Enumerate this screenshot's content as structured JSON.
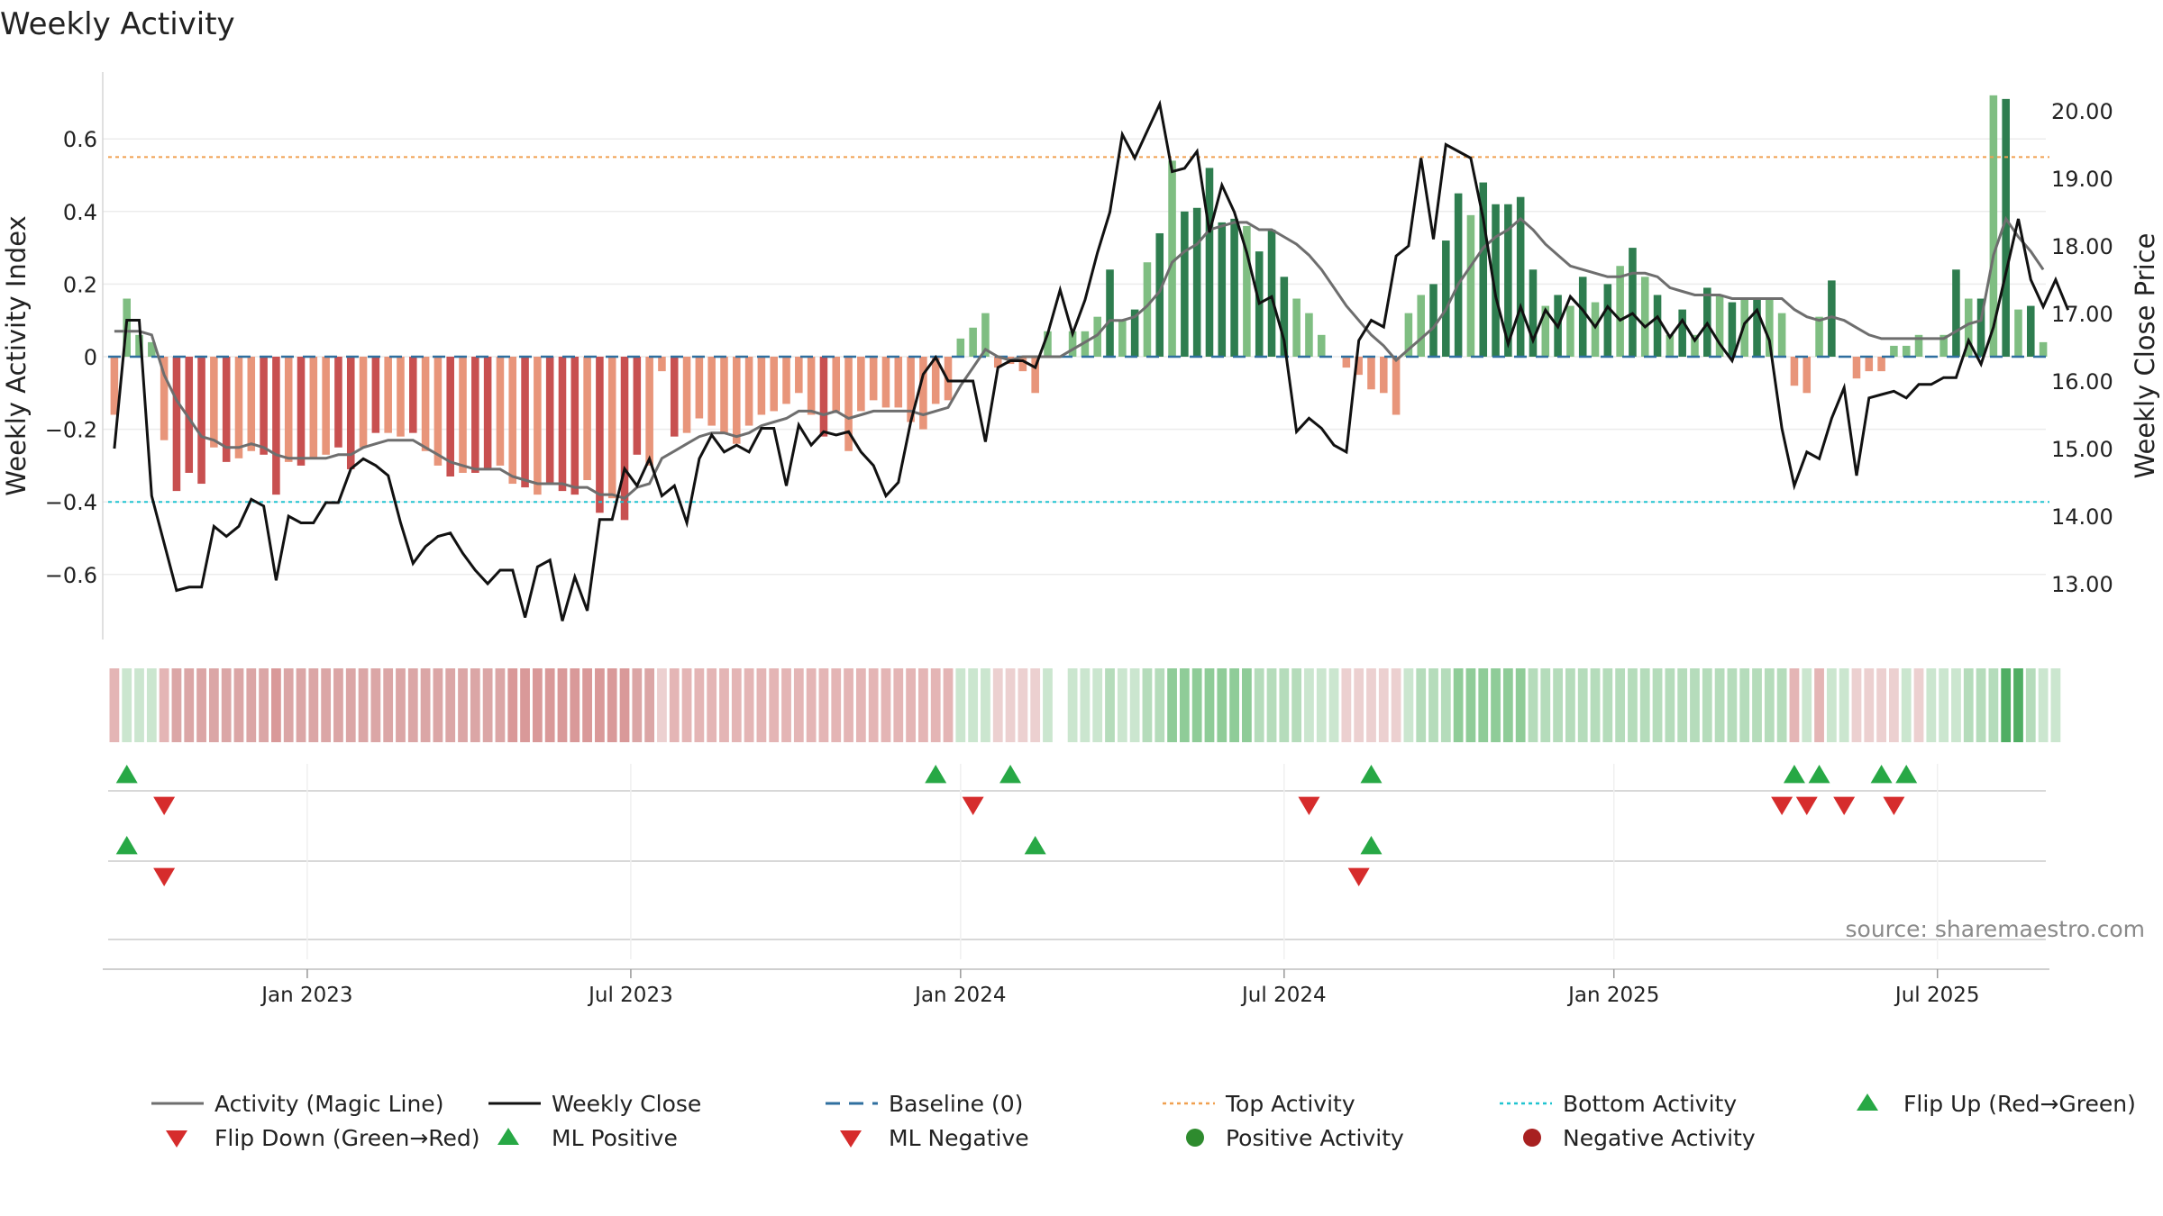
{
  "chart_data": {
    "type": "bar",
    "title": "Weekly Activity",
    "ylabel": "Weekly Activity Index",
    "y2label": "Weekly Close Price",
    "ylim": [
      -0.78,
      0.78
    ],
    "y2lim": [
      12.2,
      20.6
    ],
    "y_ticks": [
      0.6,
      0.4,
      0.2,
      0,
      -0.2,
      -0.4,
      -0.6
    ],
    "y_tick_labels": [
      "0.6",
      "0.4",
      "0.2",
      "0",
      "−0.2",
      "−0.4",
      "−0.6"
    ],
    "y2_ticks": [
      20,
      19,
      18,
      17,
      16,
      15,
      14,
      13
    ],
    "y2_tick_labels": [
      "20.00",
      "19.00",
      "18.00",
      "17.00",
      "16.00",
      "15.00",
      "14.00",
      "13.00"
    ],
    "x_ticks": [
      {
        "label": "Jan 2023",
        "week": 15.5
      },
      {
        "label": "Jul 2023",
        "week": 41.5
      },
      {
        "label": "Jan 2024",
        "week": 68
      },
      {
        "label": "Jul 2024",
        "week": 94
      },
      {
        "label": "Jan 2025",
        "week": 120.5
      },
      {
        "label": "Jul 2025",
        "week": 146.5
      }
    ],
    "top_activity": 0.55,
    "bottom_activity": -0.4,
    "activity": [
      -0.16,
      0.16,
      0.06,
      0.04,
      -0.23,
      -0.37,
      -0.32,
      -0.35,
      -0.25,
      -0.29,
      -0.28,
      -0.26,
      -0.27,
      -0.38,
      -0.29,
      -0.3,
      -0.28,
      -0.27,
      -0.25,
      -0.31,
      -0.25,
      -0.21,
      -0.21,
      -0.22,
      -0.21,
      -0.26,
      -0.3,
      -0.33,
      -0.32,
      -0.32,
      -0.31,
      -0.3,
      -0.35,
      -0.36,
      -0.38,
      -0.35,
      -0.37,
      -0.38,
      -0.34,
      -0.43,
      -0.39,
      -0.45,
      -0.27,
      -0.3,
      -0.04,
      -0.22,
      -0.21,
      -0.17,
      -0.19,
      -0.21,
      -0.24,
      -0.19,
      -0.16,
      -0.15,
      -0.13,
      -0.1,
      -0.16,
      -0.22,
      -0.15,
      -0.26,
      -0.15,
      -0.12,
      -0.14,
      -0.14,
      -0.18,
      -0.2,
      -0.13,
      -0.12,
      0.05,
      0.08,
      0.12,
      -0.03,
      -0.02,
      -0.04,
      -0.1,
      0.07,
      0.0,
      0.07,
      0.07,
      0.11,
      0.24,
      0.1,
      0.13,
      0.26,
      0.34,
      0.54,
      0.4,
      0.41,
      0.52,
      0.37,
      0.38,
      0.36,
      0.29,
      0.35,
      0.22,
      0.16,
      0.12,
      0.06,
      0.0,
      -0.03,
      -0.05,
      -0.09,
      -0.1,
      -0.16,
      0.12,
      0.17,
      0.2,
      0.32,
      0.45,
      0.39,
      0.48,
      0.42,
      0.42,
      0.44,
      0.24,
      0.14,
      0.17,
      0.14,
      0.22,
      0.15,
      0.2,
      0.25,
      0.3,
      0.22,
      0.17,
      0.06,
      0.13,
      0.06,
      0.19,
      0.17,
      0.15,
      0.16,
      0.16,
      0.16,
      0.12,
      -0.08,
      -0.1,
      0.11,
      0.21,
      0.0,
      -0.06,
      -0.04,
      -0.04,
      0.03,
      0.03,
      0.06,
      0.0,
      0.06,
      0.24,
      0.16,
      0.16,
      0.72,
      0.71,
      0.13,
      0.14,
      0.04
    ],
    "magic_line": [
      0.07,
      0.07,
      0.07,
      0.06,
      -0.05,
      -0.12,
      -0.17,
      -0.22,
      -0.23,
      -0.25,
      -0.25,
      -0.24,
      -0.25,
      -0.27,
      -0.28,
      -0.28,
      -0.28,
      -0.28,
      -0.27,
      -0.27,
      -0.25,
      -0.24,
      -0.23,
      -0.23,
      -0.23,
      -0.25,
      -0.27,
      -0.29,
      -0.3,
      -0.31,
      -0.31,
      -0.31,
      -0.33,
      -0.34,
      -0.35,
      -0.35,
      -0.35,
      -0.36,
      -0.36,
      -0.38,
      -0.38,
      -0.39,
      -0.36,
      -0.35,
      -0.28,
      -0.26,
      -0.24,
      -0.22,
      -0.21,
      -0.21,
      -0.22,
      -0.21,
      -0.19,
      -0.18,
      -0.17,
      -0.15,
      -0.15,
      -0.16,
      -0.15,
      -0.17,
      -0.16,
      -0.15,
      -0.15,
      -0.15,
      -0.15,
      -0.16,
      -0.15,
      -0.14,
      -0.08,
      -0.03,
      0.02,
      0.0,
      -0.01,
      0.0,
      0.0,
      0.0,
      0.0,
      0.02,
      0.04,
      0.06,
      0.1,
      0.1,
      0.11,
      0.14,
      0.18,
      0.26,
      0.29,
      0.31,
      0.35,
      0.36,
      0.37,
      0.37,
      0.35,
      0.35,
      0.33,
      0.31,
      0.28,
      0.24,
      0.19,
      0.14,
      0.1,
      0.06,
      0.03,
      -0.01,
      0.02,
      0.05,
      0.08,
      0.13,
      0.2,
      0.25,
      0.3,
      0.33,
      0.35,
      0.38,
      0.35,
      0.31,
      0.28,
      0.25,
      0.24,
      0.23,
      0.22,
      0.22,
      0.23,
      0.23,
      0.22,
      0.19,
      0.18,
      0.17,
      0.17,
      0.17,
      0.16,
      0.16,
      0.16,
      0.16,
      0.16,
      0.13,
      0.11,
      0.1,
      0.11,
      0.1,
      0.08,
      0.06,
      0.05,
      0.05,
      0.05,
      0.05,
      0.05,
      0.05,
      0.07,
      0.09,
      0.1,
      0.28,
      0.38,
      0.33,
      0.29,
      0.24
    ],
    "weekly_close": [
      15.0,
      16.9,
      16.9,
      14.3,
      13.6,
      12.9,
      12.95,
      12.95,
      13.85,
      13.7,
      13.85,
      14.25,
      14.15,
      13.05,
      14.0,
      13.9,
      13.9,
      14.2,
      14.2,
      14.7,
      14.85,
      14.75,
      14.6,
      13.9,
      13.3,
      13.55,
      13.7,
      13.75,
      13.45,
      13.2,
      13.0,
      13.2,
      13.2,
      12.5,
      13.25,
      13.35,
      12.45,
      13.1,
      12.6,
      13.95,
      13.95,
      14.7,
      14.45,
      14.85,
      14.3,
      14.45,
      13.9,
      14.85,
      15.2,
      14.95,
      15.05,
      14.95,
      15.3,
      15.3,
      14.45,
      15.35,
      15.05,
      15.25,
      15.2,
      15.25,
      14.95,
      14.75,
      14.3,
      14.5,
      15.4,
      16.1,
      16.35,
      16.0,
      16.0,
      16.0,
      15.1,
      16.2,
      16.3,
      16.3,
      16.2,
      16.7,
      17.35,
      16.7,
      17.2,
      17.9,
      18.5,
      19.65,
      19.3,
      19.7,
      20.1,
      19.1,
      19.15,
      19.4,
      18.2,
      18.9,
      18.5,
      17.9,
      17.15,
      17.25,
      16.6,
      15.25,
      15.45,
      15.3,
      15.05,
      14.95,
      16.6,
      16.9,
      16.8,
      17.85,
      18.0,
      19.3,
      18.1,
      19.5,
      19.4,
      19.3,
      18.4,
      17.25,
      16.55,
      17.1,
      16.6,
      17.05,
      16.8,
      17.25,
      17.05,
      16.8,
      17.1,
      16.9,
      17.0,
      16.8,
      16.95,
      16.65,
      16.9,
      16.6,
      16.85,
      16.55,
      16.3,
      16.85,
      17.05,
      16.6,
      15.3,
      14.45,
      14.95,
      14.85,
      15.45,
      15.9,
      14.6,
      15.75,
      15.8,
      15.85,
      15.75,
      15.95,
      15.95,
      16.05,
      16.05,
      16.6,
      16.25,
      16.8,
      17.6,
      18.4,
      17.5,
      17.1,
      17.5,
      17.05
    ],
    "strip_colors": [
      "#e4b5b5",
      "#cbe6cf",
      "#cbe6cf",
      "#cbe6cf",
      "#e4b5b5",
      "#dba6a6",
      "#dba6a6",
      "#dba6a6",
      "#dba6a6",
      "#dba6a6",
      "#dba6a6",
      "#dba6a6",
      "#dba6a6",
      "#d99999",
      "#dba6a6",
      "#dba6a6",
      "#dba6a6",
      "#dba6a6",
      "#dba6a6",
      "#dba6a6",
      "#dba6a6",
      "#dba6a6",
      "#dba6a6",
      "#dba6a6",
      "#dba6a6",
      "#dba6a6",
      "#dba6a6",
      "#dba6a6",
      "#dba6a6",
      "#dba6a6",
      "#dba6a6",
      "#dba6a6",
      "#d99999",
      "#d99999",
      "#d99999",
      "#d99999",
      "#d99999",
      "#d99999",
      "#d99999",
      "#d99999",
      "#d99999",
      "#d99999",
      "#dba6a6",
      "#dba6a6",
      "#ecd0d0",
      "#e4b5b5",
      "#e4b5b5",
      "#e4b5b5",
      "#e4b5b5",
      "#e4b5b5",
      "#e4b5b5",
      "#e4b5b5",
      "#e4b5b5",
      "#e4b5b5",
      "#e4b5b5",
      "#e4b5b5",
      "#e4b5b5",
      "#e4b5b5",
      "#e4b5b5",
      "#e4b5b5",
      "#e4b5b5",
      "#e4b5b5",
      "#e4b5b5",
      "#e4b5b5",
      "#e4b5b5",
      "#e4b5b5",
      "#e4b5b5",
      "#e4b5b5",
      "#cbe6cf",
      "#cbe6cf",
      "#cbe6cf",
      "#ecd0d0",
      "#ecd0d0",
      "#ecd0d0",
      "#ecd0d0",
      "#cbe6cf",
      "",
      "#cbe6cf",
      "#cbe6cf",
      "#cbe6cf",
      "#b5dcbb",
      "#cbe6cf",
      "#cbe6cf",
      "#b5dcbb",
      "#b5dcbb",
      "#8fcc98",
      "#8fcc98",
      "#8fcc98",
      "#8fcc98",
      "#8fcc98",
      "#8fcc98",
      "#8fcc98",
      "#b5dcbb",
      "#b5dcbb",
      "#b5dcbb",
      "#b5dcbb",
      "#cbe6cf",
      "#cbe6cf",
      "#cbe6cf",
      "#ecd0d0",
      "#ecd0d0",
      "#ecd0d0",
      "#ecd0d0",
      "#ecd0d0",
      "#cbe6cf",
      "#b5dcbb",
      "#b5dcbb",
      "#b5dcbb",
      "#8fcc98",
      "#8fcc98",
      "#8fcc98",
      "#8fcc98",
      "#8fcc98",
      "#8fcc98",
      "#b5dcbb",
      "#b5dcbb",
      "#b5dcbb",
      "#b5dcbb",
      "#b5dcbb",
      "#b5dcbb",
      "#b5dcbb",
      "#b5dcbb",
      "#b5dcbb",
      "#b5dcbb",
      "#b5dcbb",
      "#b5dcbb",
      "#b5dcbb",
      "#b5dcbb",
      "#b5dcbb",
      "#b5dcbb",
      "#b5dcbb",
      "#b5dcbb",
      "#b5dcbb",
      "#b5dcbb",
      "#b5dcbb",
      "#e4b5b5",
      "#cbe6cf",
      "#e4b5b5",
      "#cbe6cf",
      "#cbe6cf",
      "#ecd0d0",
      "#ecd0d0",
      "#ecd0d0",
      "#ecd0d0",
      "#cbe6cf",
      "#ecd0d0",
      "#cbe6cf",
      "#cbe6cf",
      "#cbe6cf",
      "#b5dcbb",
      "#b5dcbb",
      "#b5dcbb",
      "#4fae63",
      "#4fae63",
      "#b5dcbb",
      "#cbe6cf",
      "#cbe6cf"
    ],
    "flip_up_weeks": [
      1,
      66,
      72,
      101,
      135,
      137,
      142,
      144
    ],
    "flip_down_weeks": [
      4,
      69,
      96,
      134,
      136,
      139,
      143
    ],
    "ml_positive_weeks": [
      1,
      74,
      101
    ],
    "ml_negative_weeks": [
      4,
      100
    ],
    "source_text": "source: sharemaestro.com",
    "legend": [
      {
        "label": "Activity (Magic Line)",
        "kind": "line",
        "color": "#6e6e6e"
      },
      {
        "label": "Weekly Close",
        "kind": "line",
        "color": "#111111"
      },
      {
        "label": "Baseline (0)",
        "kind": "dash",
        "color": "#2f6f9f"
      },
      {
        "label": "Top Activity",
        "kind": "dot-line",
        "color": "#f0a050"
      },
      {
        "label": "Bottom Activity",
        "kind": "dot-line",
        "color": "#20c4d0"
      },
      {
        "label": "Flip Up (Red→Green)",
        "kind": "tri-up",
        "color": "#27a845"
      },
      {
        "label": "Flip Down (Green→Red)",
        "kind": "tri-down",
        "color": "#d62c2c"
      },
      {
        "label": "ML Positive",
        "kind": "tri-up",
        "color": "#27a845"
      },
      {
        "label": "ML Negative",
        "kind": "tri-down",
        "color": "#d62c2c"
      },
      {
        "label": "Positive Activity",
        "kind": "circle",
        "color": "#2e8b2e"
      },
      {
        "label": "Negative Activity",
        "kind": "circle",
        "color": "#a82020"
      }
    ],
    "colors": {
      "pos_strong": "#2e7d4f",
      "pos_light": "#7fbe82",
      "neg_strong": "#c85050",
      "neg_light": "#e8957a",
      "magic_line": "#6e6e6e",
      "close_line": "#111111",
      "baseline": "#2f6f9f",
      "top": "#f0a050",
      "bottom": "#20c4d0",
      "flip_up": "#27a845",
      "flip_down": "#d62c2c"
    }
  }
}
